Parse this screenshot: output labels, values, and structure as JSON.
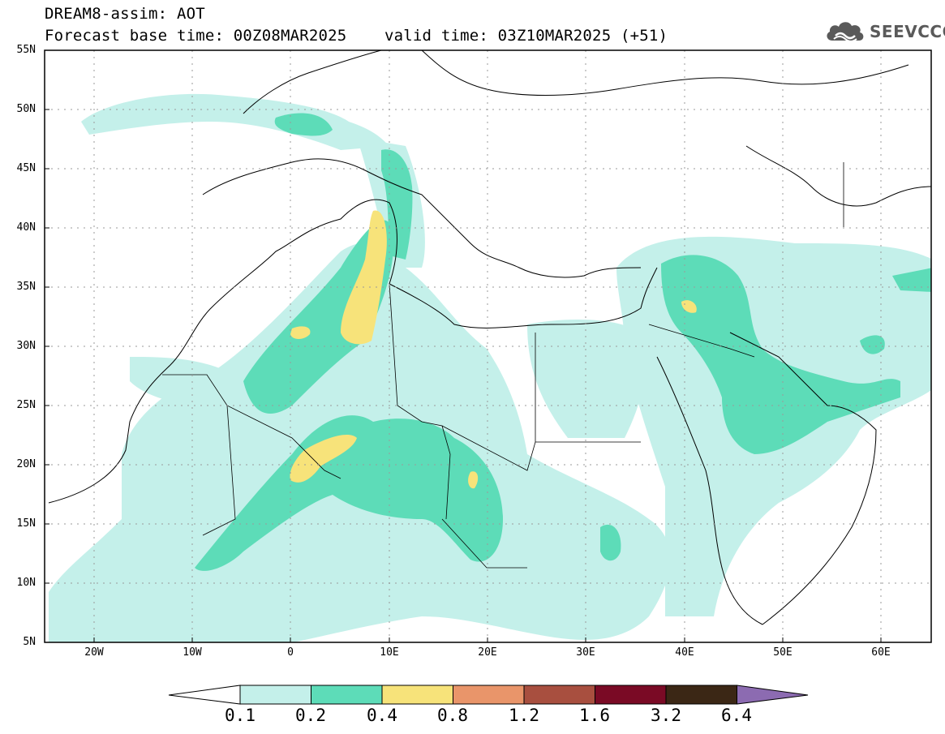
{
  "header": {
    "line1": "DREAM8-assim: AOT",
    "line2": "Forecast base time: 00Z08MAR2025    valid time: 03Z10MAR2025 (+51)"
  },
  "logo": {
    "icon": "cloud-icon",
    "text": "SEEVCCC",
    "color": "#5a5a5a"
  },
  "map": {
    "lat_labels": [
      "55N",
      "50N",
      "45N",
      "40N",
      "35N",
      "30N",
      "25N",
      "20N",
      "15N",
      "10N",
      "5N"
    ],
    "lon_labels": [
      "20W",
      "10W",
      "0",
      "10E",
      "20E",
      "30E",
      "40E",
      "50E",
      "60E"
    ],
    "lat_range": [
      5,
      55
    ],
    "lon_range": [
      -25,
      65
    ],
    "gridlines": "dotted",
    "colors": {
      "c1": "#c4f0ea",
      "c2": "#5ddcb8",
      "c3": "#f7e37a"
    }
  },
  "colorbar": {
    "labels": [
      "0.1",
      "0.2",
      "0.4",
      "0.8",
      "1.2",
      "1.6",
      "3.2",
      "6.4"
    ],
    "colors": [
      "#c4f0ea",
      "#5ddcb8",
      "#f7e37a",
      "#e9956a",
      "#a84f3f",
      "#7a0a25",
      "#3b2715",
      "#8c6bb1"
    ]
  }
}
